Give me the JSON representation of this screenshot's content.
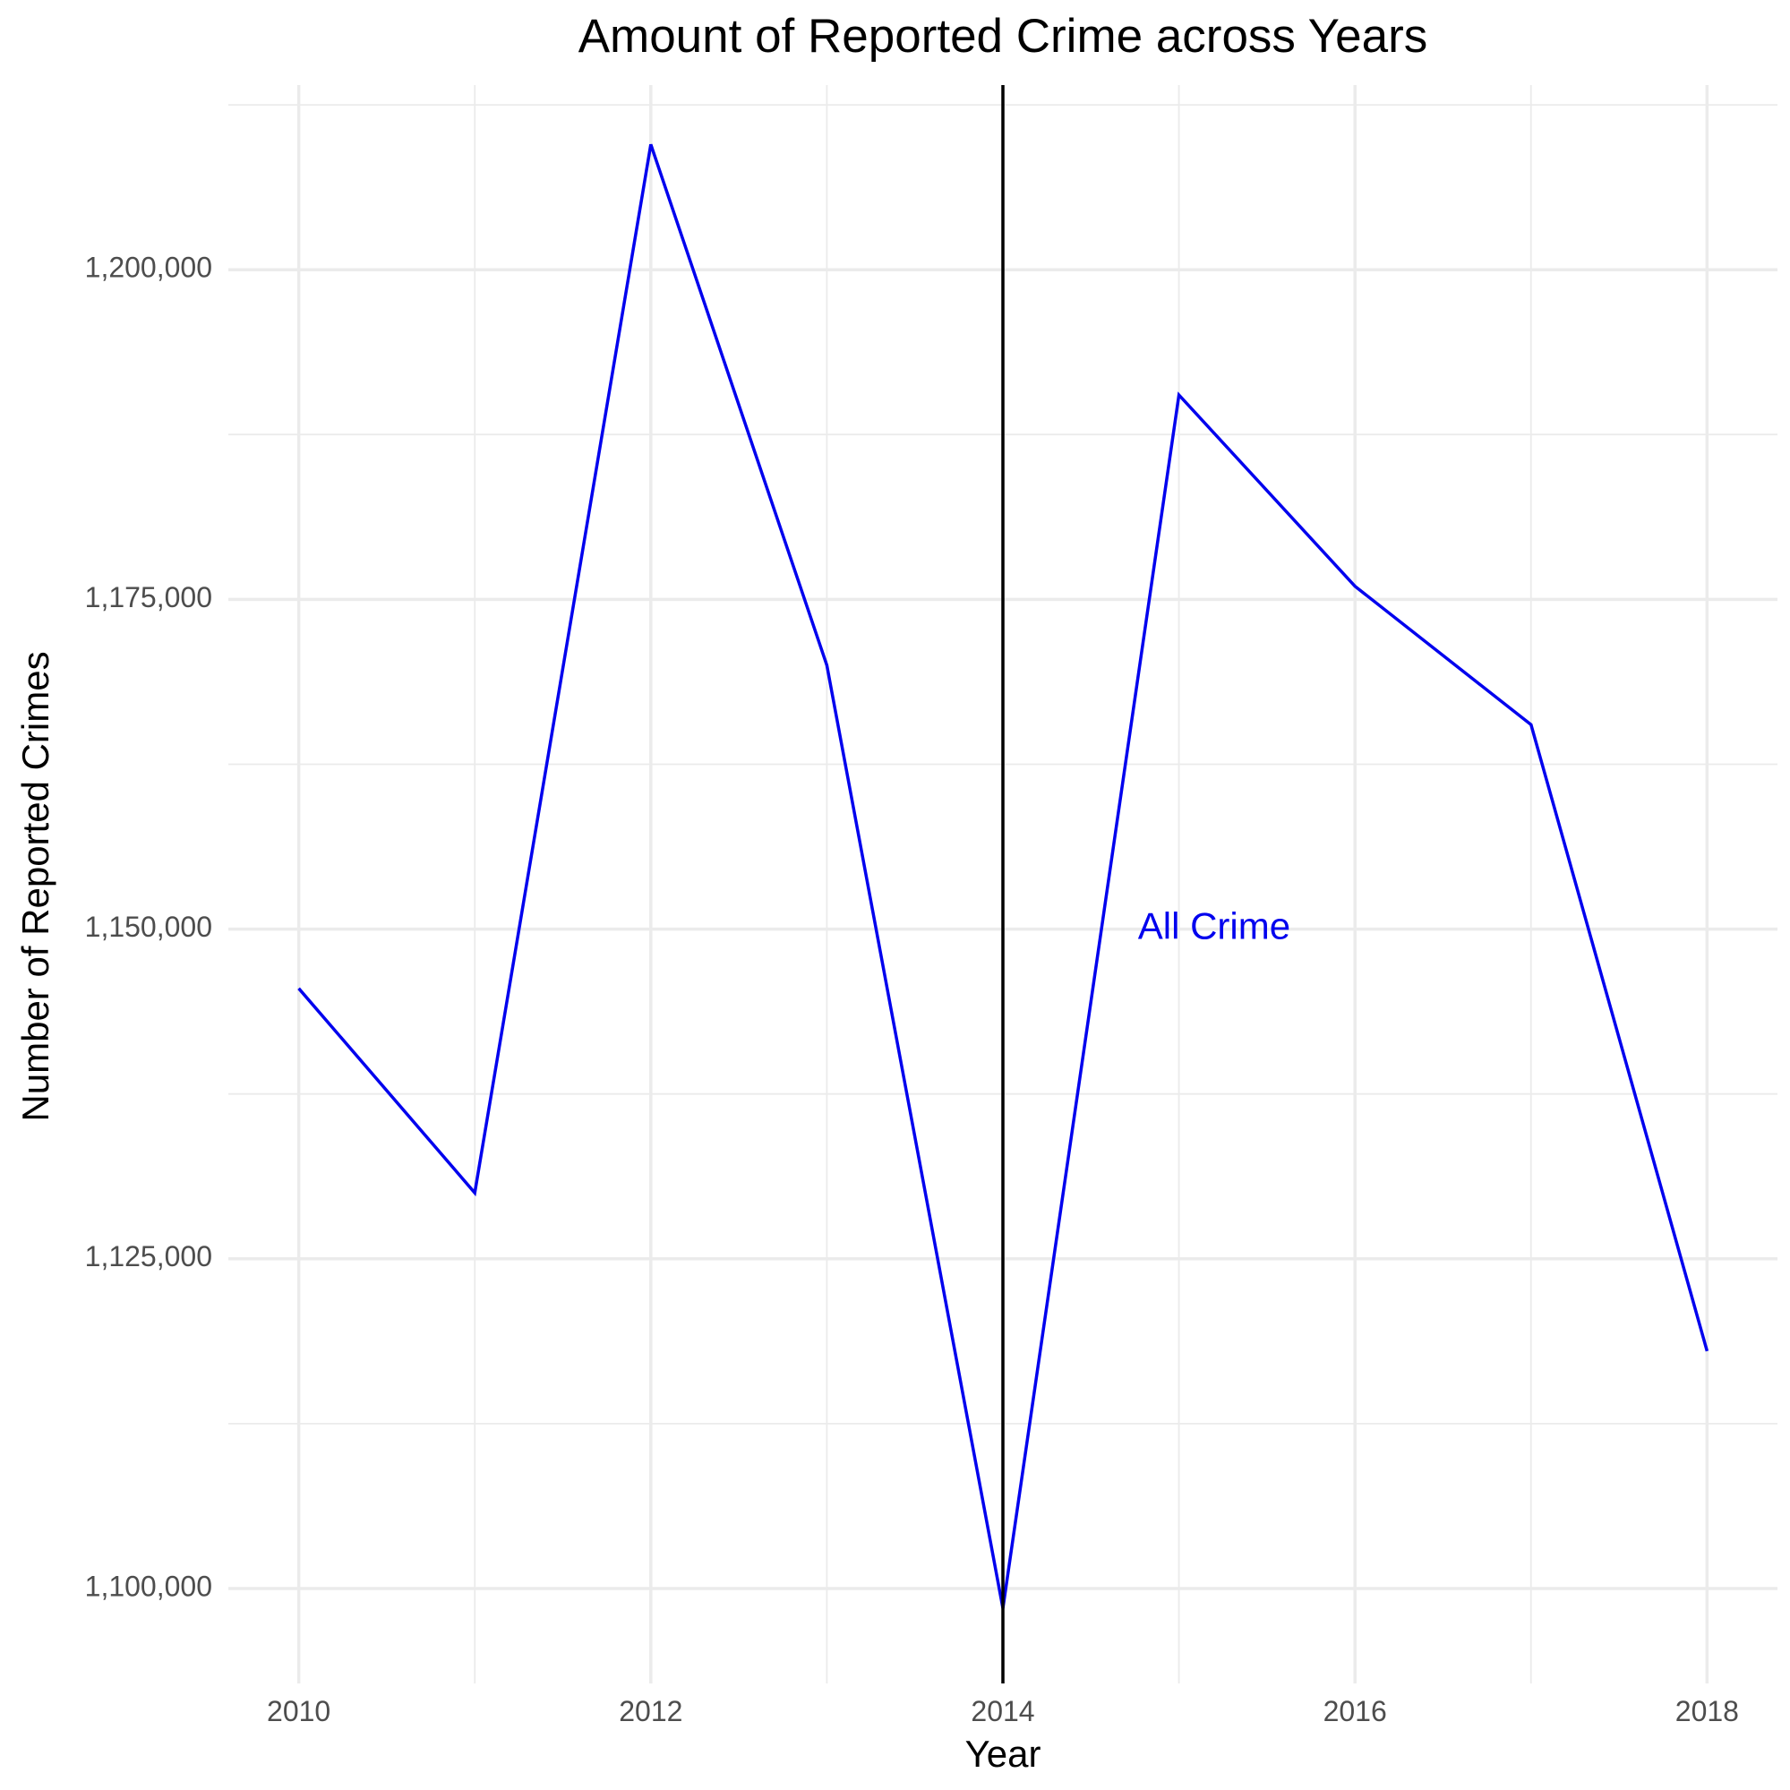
{
  "chart_data": {
    "type": "line",
    "title": "Amount of Reported Crime across Years",
    "xlabel": "Year",
    "ylabel": "Number of Reported Crimes",
    "x": [
      2010,
      2011,
      2012,
      2013,
      2014,
      2015,
      2016,
      2017,
      2018
    ],
    "series": [
      {
        "values": [
          1145500,
          1130000,
          1209500,
          1170000,
          1098500,
          1190500,
          1176000,
          1165500,
          1118000
        ],
        "color": "#0000ee"
      }
    ],
    "xlim": [
      2009.6,
      2018.4
    ],
    "ylim": [
      1092800,
      1214000
    ],
    "x_ticks": [
      2010,
      2012,
      2014,
      2016,
      2018
    ],
    "x_tick_labels": [
      "2010",
      "2012",
      "2014",
      "2016",
      "2018"
    ],
    "y_ticks": [
      1100000,
      1125000,
      1150000,
      1175000,
      1200000
    ],
    "y_tick_labels": [
      "1,100,000",
      "1,125,000",
      "1,150,000",
      "1,175,000",
      "1,200,000"
    ],
    "x_minor_grid": [
      2011,
      2013,
      2015,
      2017
    ],
    "y_minor_grid": [
      1112500,
      1137500,
      1162500,
      1187500,
      1212500
    ],
    "grid": true,
    "reference_line": {
      "x": 2014,
      "color": "#000000"
    },
    "annotation": {
      "text": "All Crime",
      "x": 2015.2,
      "y": 1150000,
      "color": "#0000ee"
    },
    "legend": "none"
  }
}
